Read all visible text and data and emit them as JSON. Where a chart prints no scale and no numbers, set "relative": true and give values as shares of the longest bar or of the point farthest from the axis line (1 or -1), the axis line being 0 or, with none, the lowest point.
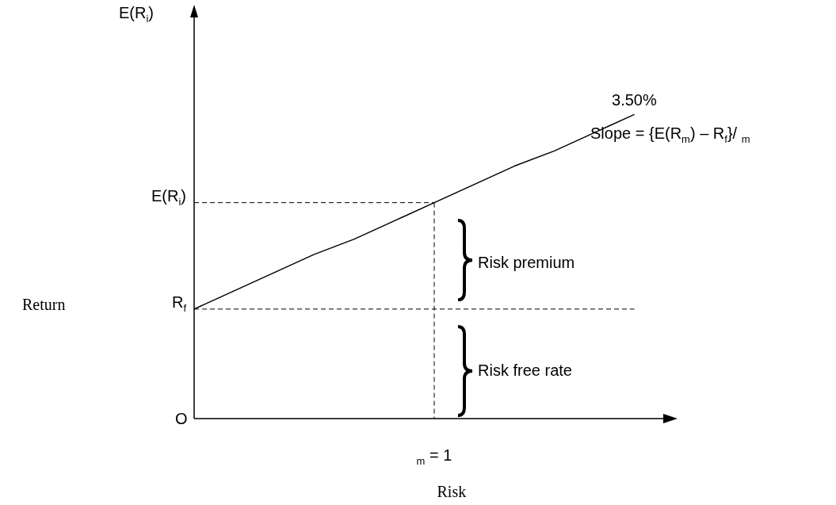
{
  "chart_data": {
    "type": "line",
    "relative": true,
    "xlabel": "Risk",
    "categories": [
      null,
      null,
      null,
      null,
      null,
      null,
      null,
      null,
      null,
      null,
      null,
      null
    ],
    "series": [
      {
        "color": "#000000",
        "values": [
          0.36,
          0.42,
          0.48,
          0.54,
          0.59,
          0.65,
          0.71,
          0.77,
          0.83,
          0.88,
          0.94,
          1
        ]
      }
    ],
    "marker": "none",
    "line_style": "solid",
    "ref_lines": [
      {
        "axis": "y",
        "value": 0.36,
        "label": "R$_{f}$",
        "line_style": "dashed"
      },
      {
        "axis": "y",
        "value": 0.71,
        "label": "E(R$_{i}$)",
        "line_style": "dashed"
      }
    ],
    "annotations": [
      "E(R$_{i}$)",
      "Slope = {E(R$_{m}$) – R$_{f}$}/ $_{m}$",
      "Risk premium",
      "Risk free rate",
      "3.50%",
      "O",
      "$_{m}$ = 1",
      "Return"
    ]
  }
}
